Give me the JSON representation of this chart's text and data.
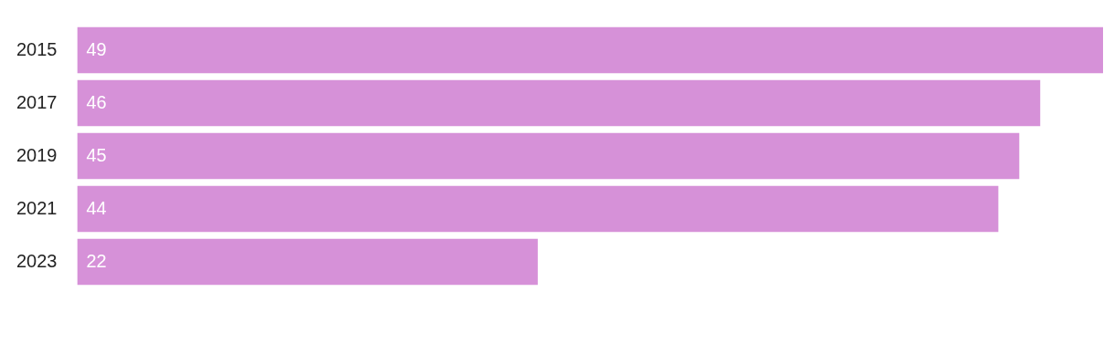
{
  "chart_data": {
    "type": "bar",
    "orientation": "horizontal",
    "categories": [
      "2015",
      "2017",
      "2019",
      "2021",
      "2023"
    ],
    "values": [
      49,
      46,
      45,
      44,
      22
    ],
    "color": "#d691d8",
    "data_labels": true
  }
}
